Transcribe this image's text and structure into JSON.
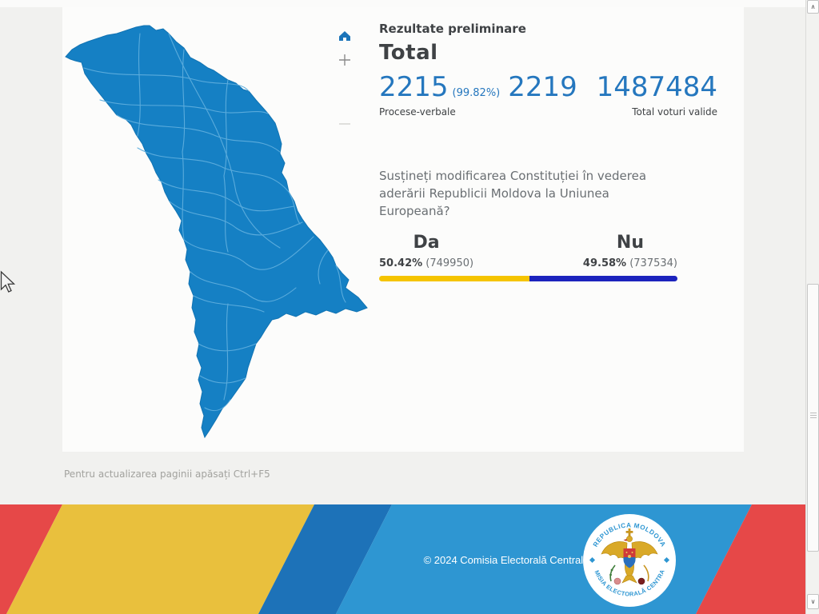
{
  "results": {
    "heading": "Rezultate preliminare",
    "total_label": "Total",
    "protocols": {
      "count": "2215",
      "percent": "(99.82%)",
      "total": "2219",
      "label": "Procese-verbale"
    },
    "valid_votes": {
      "count": "1487484",
      "label": "Total voturi valide"
    },
    "question": "Susțineți modificarea Constituției în vederea aderării Republicii Moldova la Uniunea Europeană?",
    "options": [
      {
        "label": "Da",
        "percent": "50.42%",
        "votes": "(749950)",
        "share": 50.42,
        "color": "#f5c400"
      },
      {
        "label": "Nu",
        "percent": "49.58%",
        "votes": "(737534)",
        "share": 49.58,
        "color": "#1c23bd"
      }
    ]
  },
  "map": {
    "name": "Republica Moldova",
    "fill": "#1580c4",
    "district_border": "#5eaede",
    "controls": {
      "home": "reset-view",
      "zoom_in": "+",
      "zoom_out": "−"
    }
  },
  "refresh_hint": "Pentru actualizarea paginii apăsați Ctrl+F5",
  "footer": {
    "copyright": "© 2024 Comisia Electorală Centrală",
    "logo": {
      "top_text": "REPUBLICA MOLDOVA",
      "bottom_text": "COMISIA ELECTORALĂ CENTRALĂ"
    },
    "colors": {
      "red": "#e64848",
      "yellow": "#e9c03d",
      "dark_blue": "#1d72b8",
      "light_blue": "#2e96d2"
    }
  },
  "scrollbar": {
    "up_glyph": "∧",
    "down_glyph": "∨"
  }
}
